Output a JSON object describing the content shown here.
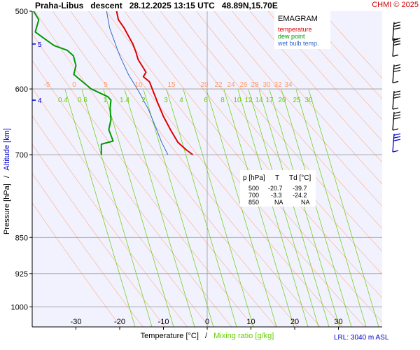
{
  "header": {
    "title": "Praha-Libus   descent   28.12.2025 13:15 UTC   48.89N,15.70E",
    "copyright": "CHMI © 2025"
  },
  "legend": {
    "title": "EMAGRAM",
    "items": [
      {
        "label": "temperature",
        "color": "#e00000"
      },
      {
        "label": "dew point",
        "color": "#009900"
      },
      {
        "label": "wet bulb temp.",
        "color": "#3366cc"
      }
    ]
  },
  "table": {
    "headers": [
      "p [hPa]",
      "T",
      "Td [°C]"
    ],
    "rows": [
      [
        "500",
        "-20.7",
        "-39.7"
      ],
      [
        "700",
        "-3.3",
        "-24.2"
      ],
      [
        "850",
        "NA",
        "NA"
      ]
    ]
  },
  "station_info": "LRL: 3040 m ASL",
  "axis": {
    "ylabel_part1": "Pressure [hPa]",
    "ylabel_sep": "/",
    "ylabel_part2": "Altitude [km]",
    "xlabel_part1": "Temperature [°C]",
    "xlabel_sep": "/",
    "xlabel_part2": "Mixing ratio [g/kg]"
  },
  "colors": {
    "plot_bg": "#f2f2ff",
    "temperature": "#e00000",
    "dew_point": "#009900",
    "wet_bulb": "#3366cc",
    "mixing_ratio": "#66cc00",
    "dry_adiabat": "#ff9966",
    "grid": "#999999",
    "altitude": "#0000cc"
  },
  "chart_data": {
    "type": "line",
    "x_axis": {
      "label": "Temperature [°C]",
      "range": [
        -40,
        40
      ],
      "ticks": [
        -30,
        -20,
        -10,
        0,
        10,
        20,
        30
      ]
    },
    "y_axis": {
      "label": "Pressure [hPa]",
      "scale": "log",
      "range": [
        1050,
        500
      ],
      "ticks": [
        500,
        600,
        700,
        850,
        925,
        1000
      ]
    },
    "altitude_ticks": [
      {
        "label": "5",
        "pressure": 540
      },
      {
        "label": "4",
        "pressure": 616
      }
    ],
    "mixing_ratio_labels": [
      "0.4",
      "0.6",
      "1",
      "1.4",
      "2",
      "3",
      "4",
      "6",
      "8",
      "10",
      "12",
      "14",
      "17",
      "20",
      "25",
      "30"
    ],
    "dry_adiabat_labels": [
      "-5",
      "0",
      "5",
      "10",
      "15",
      "20",
      "22",
      "24",
      "26",
      "28",
      "30",
      "32",
      "34"
    ],
    "series": [
      {
        "name": "temperature",
        "points": [
          [
            -20.7,
            500
          ],
          [
            -20.3,
            510
          ],
          [
            -19.0,
            520
          ],
          [
            -17.8,
            532
          ],
          [
            -17.0,
            540
          ],
          [
            -16.3,
            550
          ],
          [
            -15.8,
            560
          ],
          [
            -14.5,
            572
          ],
          [
            -14.0,
            577
          ],
          [
            -14.6,
            583
          ],
          [
            -13.2,
            590
          ],
          [
            -12.3,
            604
          ],
          [
            -11.3,
            620
          ],
          [
            -10.0,
            640
          ],
          [
            -8.4,
            660
          ],
          [
            -6.7,
            680
          ],
          [
            -4.8,
            692
          ],
          [
            -3.3,
            700
          ]
        ]
      },
      {
        "name": "dew point",
        "points": [
          [
            -39.7,
            500
          ],
          [
            -38.5,
            510
          ],
          [
            -39.3,
            525
          ],
          [
            -36.5,
            536
          ],
          [
            -35.0,
            542
          ],
          [
            -32.0,
            548
          ],
          [
            -30.6,
            555
          ],
          [
            -30.0,
            568
          ],
          [
            -30.5,
            580
          ],
          [
            -26.5,
            600
          ],
          [
            -22.7,
            611
          ],
          [
            -22.0,
            616
          ],
          [
            -22.2,
            628
          ],
          [
            -22.0,
            645
          ],
          [
            -22.5,
            660
          ],
          [
            -21.5,
            678
          ],
          [
            -24.2,
            683
          ],
          [
            -24.2,
            700
          ]
        ]
      },
      {
        "name": "wet bulb temp.",
        "points": [
          [
            -23.0,
            500
          ],
          [
            -22.3,
            520
          ],
          [
            -20.6,
            546
          ],
          [
            -19.9,
            556
          ],
          [
            -18.0,
            580
          ],
          [
            -15.6,
            604
          ],
          [
            -13.4,
            630
          ],
          [
            -10.4,
            680
          ],
          [
            -9.0,
            700
          ]
        ]
      }
    ],
    "wind_barbs": [
      {
        "pressure": 525,
        "highlighted": false
      },
      {
        "pressure": 545,
        "highlighted": false
      },
      {
        "pressure": 580,
        "highlighted": false
      },
      {
        "pressure": 617,
        "highlighted": false
      },
      {
        "pressure": 648,
        "highlighted": false
      },
      {
        "pressure": 682,
        "highlighted": true
      }
    ]
  }
}
